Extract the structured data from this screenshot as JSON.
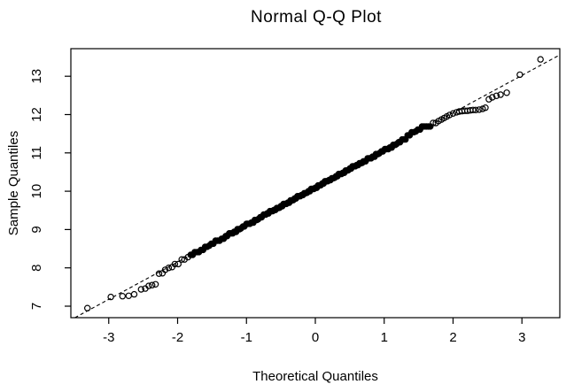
{
  "colors": {
    "foreground": "#000000",
    "background": "#ffffff"
  },
  "chart_data": {
    "type": "scatter",
    "title": "Normal Q-Q Plot",
    "xlabel": "Theoretical Quantiles",
    "ylabel": "Sample Quantiles",
    "xlim": [
      -3.55,
      3.55
    ],
    "ylim": [
      6.7,
      13.72
    ],
    "x_ticks": [
      "-3",
      "-2",
      "-1",
      "0",
      "1",
      "2",
      "3"
    ],
    "x_tick_values": [
      -3,
      -2,
      -1,
      0,
      1,
      2,
      3
    ],
    "y_ticks": [
      "7",
      "8",
      "9",
      "10",
      "11",
      "12",
      "13"
    ],
    "y_tick_values": [
      7,
      8,
      9,
      10,
      11,
      12,
      13
    ],
    "grid": false,
    "legend_position": "none",
    "marker": {
      "shape": "open-circle",
      "color": "#000000",
      "radius": 3.1,
      "stroke_width": 1.2
    },
    "reference_line": {
      "style": "dashed",
      "color": "#000000",
      "slope": 0.974,
      "intercept": 10.1,
      "dash": [
        4,
        3
      ]
    },
    "points": [
      [
        -3.31,
        6.95
      ],
      [
        -2.97,
        7.24
      ],
      [
        -2.8,
        7.26
      ],
      [
        -2.71,
        7.27
      ],
      [
        -2.63,
        7.31
      ],
      [
        -2.53,
        7.44
      ],
      [
        -2.47,
        7.46
      ],
      [
        -2.42,
        7.53
      ],
      [
        -2.37,
        7.55
      ],
      [
        -2.32,
        7.57
      ],
      [
        -2.27,
        7.85
      ],
      [
        -2.22,
        7.86
      ],
      [
        -2.18,
        7.95
      ],
      [
        -2.13,
        8.0
      ],
      [
        -2.08,
        8.02
      ],
      [
        -2.04,
        8.1
      ],
      [
        -1.99,
        8.1
      ],
      [
        -1.94,
        8.22
      ],
      [
        -1.9,
        8.22
      ],
      [
        -1.85,
        8.28
      ],
      [
        -1.81,
        8.34
      ],
      [
        -1.78,
        8.34
      ],
      [
        -1.75,
        8.41
      ],
      [
        -1.72,
        8.41
      ],
      [
        -1.69,
        8.41
      ],
      [
        -1.66,
        8.47
      ],
      [
        -1.63,
        8.47
      ],
      [
        -1.6,
        8.55
      ],
      [
        -1.57,
        8.55
      ],
      [
        -1.54,
        8.58
      ],
      [
        -1.51,
        8.63
      ],
      [
        -1.48,
        8.63
      ],
      [
        -1.45,
        8.71
      ],
      [
        -1.42,
        8.71
      ],
      [
        -1.39,
        8.71
      ],
      [
        -1.36,
        8.76
      ],
      [
        -1.33,
        8.76
      ],
      [
        -1.3,
        8.83
      ],
      [
        -1.28,
        8.83
      ],
      [
        -1.25,
        8.9
      ],
      [
        -1.23,
        8.9
      ],
      [
        -1.2,
        8.9
      ],
      [
        -1.18,
        8.94
      ],
      [
        -1.15,
        8.94
      ],
      [
        -1.13,
        9.01
      ],
      [
        -1.1,
        9.01
      ],
      [
        -1.08,
        9.03
      ],
      [
        -1.05,
        9.08
      ],
      [
        -1.03,
        9.08
      ],
      [
        -1.0,
        9.15
      ],
      [
        -0.98,
        9.15
      ],
      [
        -0.95,
        9.15
      ],
      [
        -0.93,
        9.18
      ],
      [
        -0.9,
        9.18
      ],
      [
        -0.88,
        9.25
      ],
      [
        -0.85,
        9.25
      ],
      [
        -0.83,
        9.27
      ],
      [
        -0.8,
        9.32
      ],
      [
        -0.78,
        9.32
      ],
      [
        -0.75,
        9.39
      ],
      [
        -0.72,
        9.39
      ],
      [
        -0.7,
        9.42
      ],
      [
        -0.68,
        9.42
      ],
      [
        -0.66,
        9.48
      ],
      [
        -0.64,
        9.48
      ],
      [
        -0.62,
        9.48
      ],
      [
        -0.6,
        9.51
      ],
      [
        -0.58,
        9.51
      ],
      [
        -0.56,
        9.56
      ],
      [
        -0.54,
        9.56
      ],
      [
        -0.52,
        9.57
      ],
      [
        -0.5,
        9.61
      ],
      [
        -0.48,
        9.61
      ],
      [
        -0.46,
        9.67
      ],
      [
        -0.44,
        9.67
      ],
      [
        -0.42,
        9.67
      ],
      [
        -0.4,
        9.7
      ],
      [
        -0.38,
        9.7
      ],
      [
        -0.36,
        9.76
      ],
      [
        -0.34,
        9.76
      ],
      [
        -0.32,
        9.77
      ],
      [
        -0.3,
        9.81
      ],
      [
        -0.28,
        9.81
      ],
      [
        -0.26,
        9.87
      ],
      [
        -0.24,
        9.87
      ],
      [
        -0.22,
        9.87
      ],
      [
        -0.2,
        9.9
      ],
      [
        -0.18,
        9.9
      ],
      [
        -0.16,
        9.95
      ],
      [
        -0.14,
        9.95
      ],
      [
        -0.12,
        9.96
      ],
      [
        -0.1,
        10.0
      ],
      [
        -0.08,
        10.0
      ],
      [
        -0.06,
        10.06
      ],
      [
        -0.04,
        10.06
      ],
      [
        -0.02,
        10.06
      ],
      [
        0.0,
        10.09
      ],
      [
        0.02,
        10.09
      ],
      [
        0.04,
        10.15
      ],
      [
        0.06,
        10.15
      ],
      [
        0.08,
        10.16
      ],
      [
        0.1,
        10.2
      ],
      [
        0.12,
        10.2
      ],
      [
        0.14,
        10.26
      ],
      [
        0.16,
        10.26
      ],
      [
        0.18,
        10.26
      ],
      [
        0.2,
        10.29
      ],
      [
        0.22,
        10.29
      ],
      [
        0.24,
        10.34
      ],
      [
        0.26,
        10.34
      ],
      [
        0.28,
        10.35
      ],
      [
        0.3,
        10.39
      ],
      [
        0.32,
        10.39
      ],
      [
        0.34,
        10.45
      ],
      [
        0.36,
        10.45
      ],
      [
        0.38,
        10.45
      ],
      [
        0.4,
        10.48
      ],
      [
        0.42,
        10.48
      ],
      [
        0.44,
        10.54
      ],
      [
        0.46,
        10.54
      ],
      [
        0.48,
        10.55
      ],
      [
        0.5,
        10.59
      ],
      [
        0.52,
        10.59
      ],
      [
        0.54,
        10.65
      ],
      [
        0.56,
        10.65
      ],
      [
        0.58,
        10.65
      ],
      [
        0.6,
        10.68
      ],
      [
        0.62,
        10.68
      ],
      [
        0.64,
        10.73
      ],
      [
        0.66,
        10.73
      ],
      [
        0.68,
        10.74
      ],
      [
        0.7,
        10.78
      ],
      [
        0.73,
        10.78
      ],
      [
        0.76,
        10.86
      ],
      [
        0.78,
        10.86
      ],
      [
        0.81,
        10.86
      ],
      [
        0.83,
        10.9
      ],
      [
        0.86,
        10.9
      ],
      [
        0.88,
        10.97
      ],
      [
        0.91,
        10.97
      ],
      [
        0.93,
        10.99
      ],
      [
        0.96,
        11.04
      ],
      [
        0.98,
        11.04
      ],
      [
        1.01,
        11.1
      ],
      [
        1.03,
        11.1
      ],
      [
        1.06,
        11.1
      ],
      [
        1.08,
        11.14
      ],
      [
        1.11,
        11.14
      ],
      [
        1.13,
        11.21
      ],
      [
        1.16,
        11.21
      ],
      [
        1.18,
        11.23
      ],
      [
        1.21,
        11.28
      ],
      [
        1.23,
        11.28
      ],
      [
        1.26,
        11.35
      ],
      [
        1.28,
        11.35
      ],
      [
        1.31,
        11.35
      ],
      [
        1.34,
        11.46
      ],
      [
        1.37,
        11.46
      ],
      [
        1.4,
        11.54
      ],
      [
        1.43,
        11.54
      ],
      [
        1.46,
        11.56
      ],
      [
        1.49,
        11.61
      ],
      [
        1.52,
        11.61
      ],
      [
        1.55,
        11.69
      ],
      [
        1.58,
        11.69
      ],
      [
        1.61,
        11.69
      ],
      [
        1.64,
        11.69
      ],
      [
        1.67,
        11.69
      ],
      [
        1.71,
        11.78
      ],
      [
        1.75,
        11.78
      ],
      [
        1.79,
        11.83
      ],
      [
        1.83,
        11.87
      ],
      [
        1.87,
        11.91
      ],
      [
        1.91,
        11.95
      ],
      [
        1.95,
        11.99
      ],
      [
        2.0,
        12.03
      ],
      [
        2.05,
        12.06
      ],
      [
        2.09,
        12.08
      ],
      [
        2.13,
        12.09
      ],
      [
        2.17,
        12.1
      ],
      [
        2.21,
        12.1
      ],
      [
        2.25,
        12.11
      ],
      [
        2.29,
        12.12
      ],
      [
        2.33,
        12.12
      ],
      [
        2.38,
        12.13
      ],
      [
        2.43,
        12.15
      ],
      [
        2.47,
        12.18
      ],
      [
        2.52,
        12.4
      ],
      [
        2.57,
        12.45
      ],
      [
        2.63,
        12.49
      ],
      [
        2.69,
        12.52
      ],
      [
        2.78,
        12.57
      ],
      [
        2.97,
        13.04
      ],
      [
        3.27,
        13.44
      ]
    ]
  }
}
